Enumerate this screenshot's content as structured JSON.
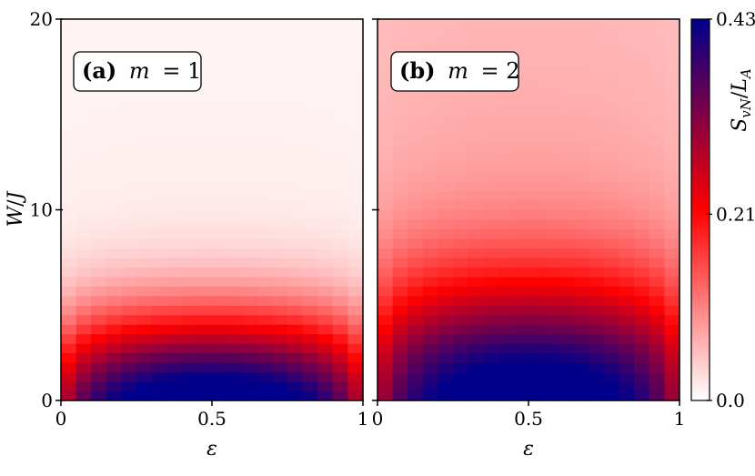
{
  "chart_data": {
    "type": "heatmap",
    "y_axis": {
      "label_base": "W",
      "label_sep": "/",
      "label_unit": "J",
      "range": [
        0,
        20
      ],
      "ticks": [
        "0",
        "10",
        "20"
      ]
    },
    "x_axis": {
      "label": "ε",
      "range": [
        0,
        1
      ],
      "ticks": [
        "0",
        "0.5",
        "1"
      ]
    },
    "colorbar": {
      "label_base": "S",
      "label_sub": "vN",
      "label_sep": "/",
      "label_den": "L",
      "label_den_sub": "A",
      "range": [
        0.0,
        0.43
      ],
      "ticks": [
        "0.0",
        "0.21",
        "0.43"
      ],
      "colors": [
        "#ffffff",
        "#ff0000",
        "#00008b"
      ]
    },
    "panels": [
      {
        "tag": "(a)",
        "var": "m",
        "eq": "= 1",
        "peak_value": 0.43,
        "peak_epsilon": 0.5,
        "half_width_W": 4.5,
        "decay_W": 3.5,
        "background_value": 0.01
      },
      {
        "tag": "(b)",
        "var": "m",
        "eq": "= 2",
        "peak_value": 0.43,
        "peak_epsilon": 0.5,
        "half_width_W": 6.0,
        "decay_W": 9.0,
        "background_value": 0.05
      }
    ],
    "grid": false,
    "legend": "colorbar-right"
  }
}
